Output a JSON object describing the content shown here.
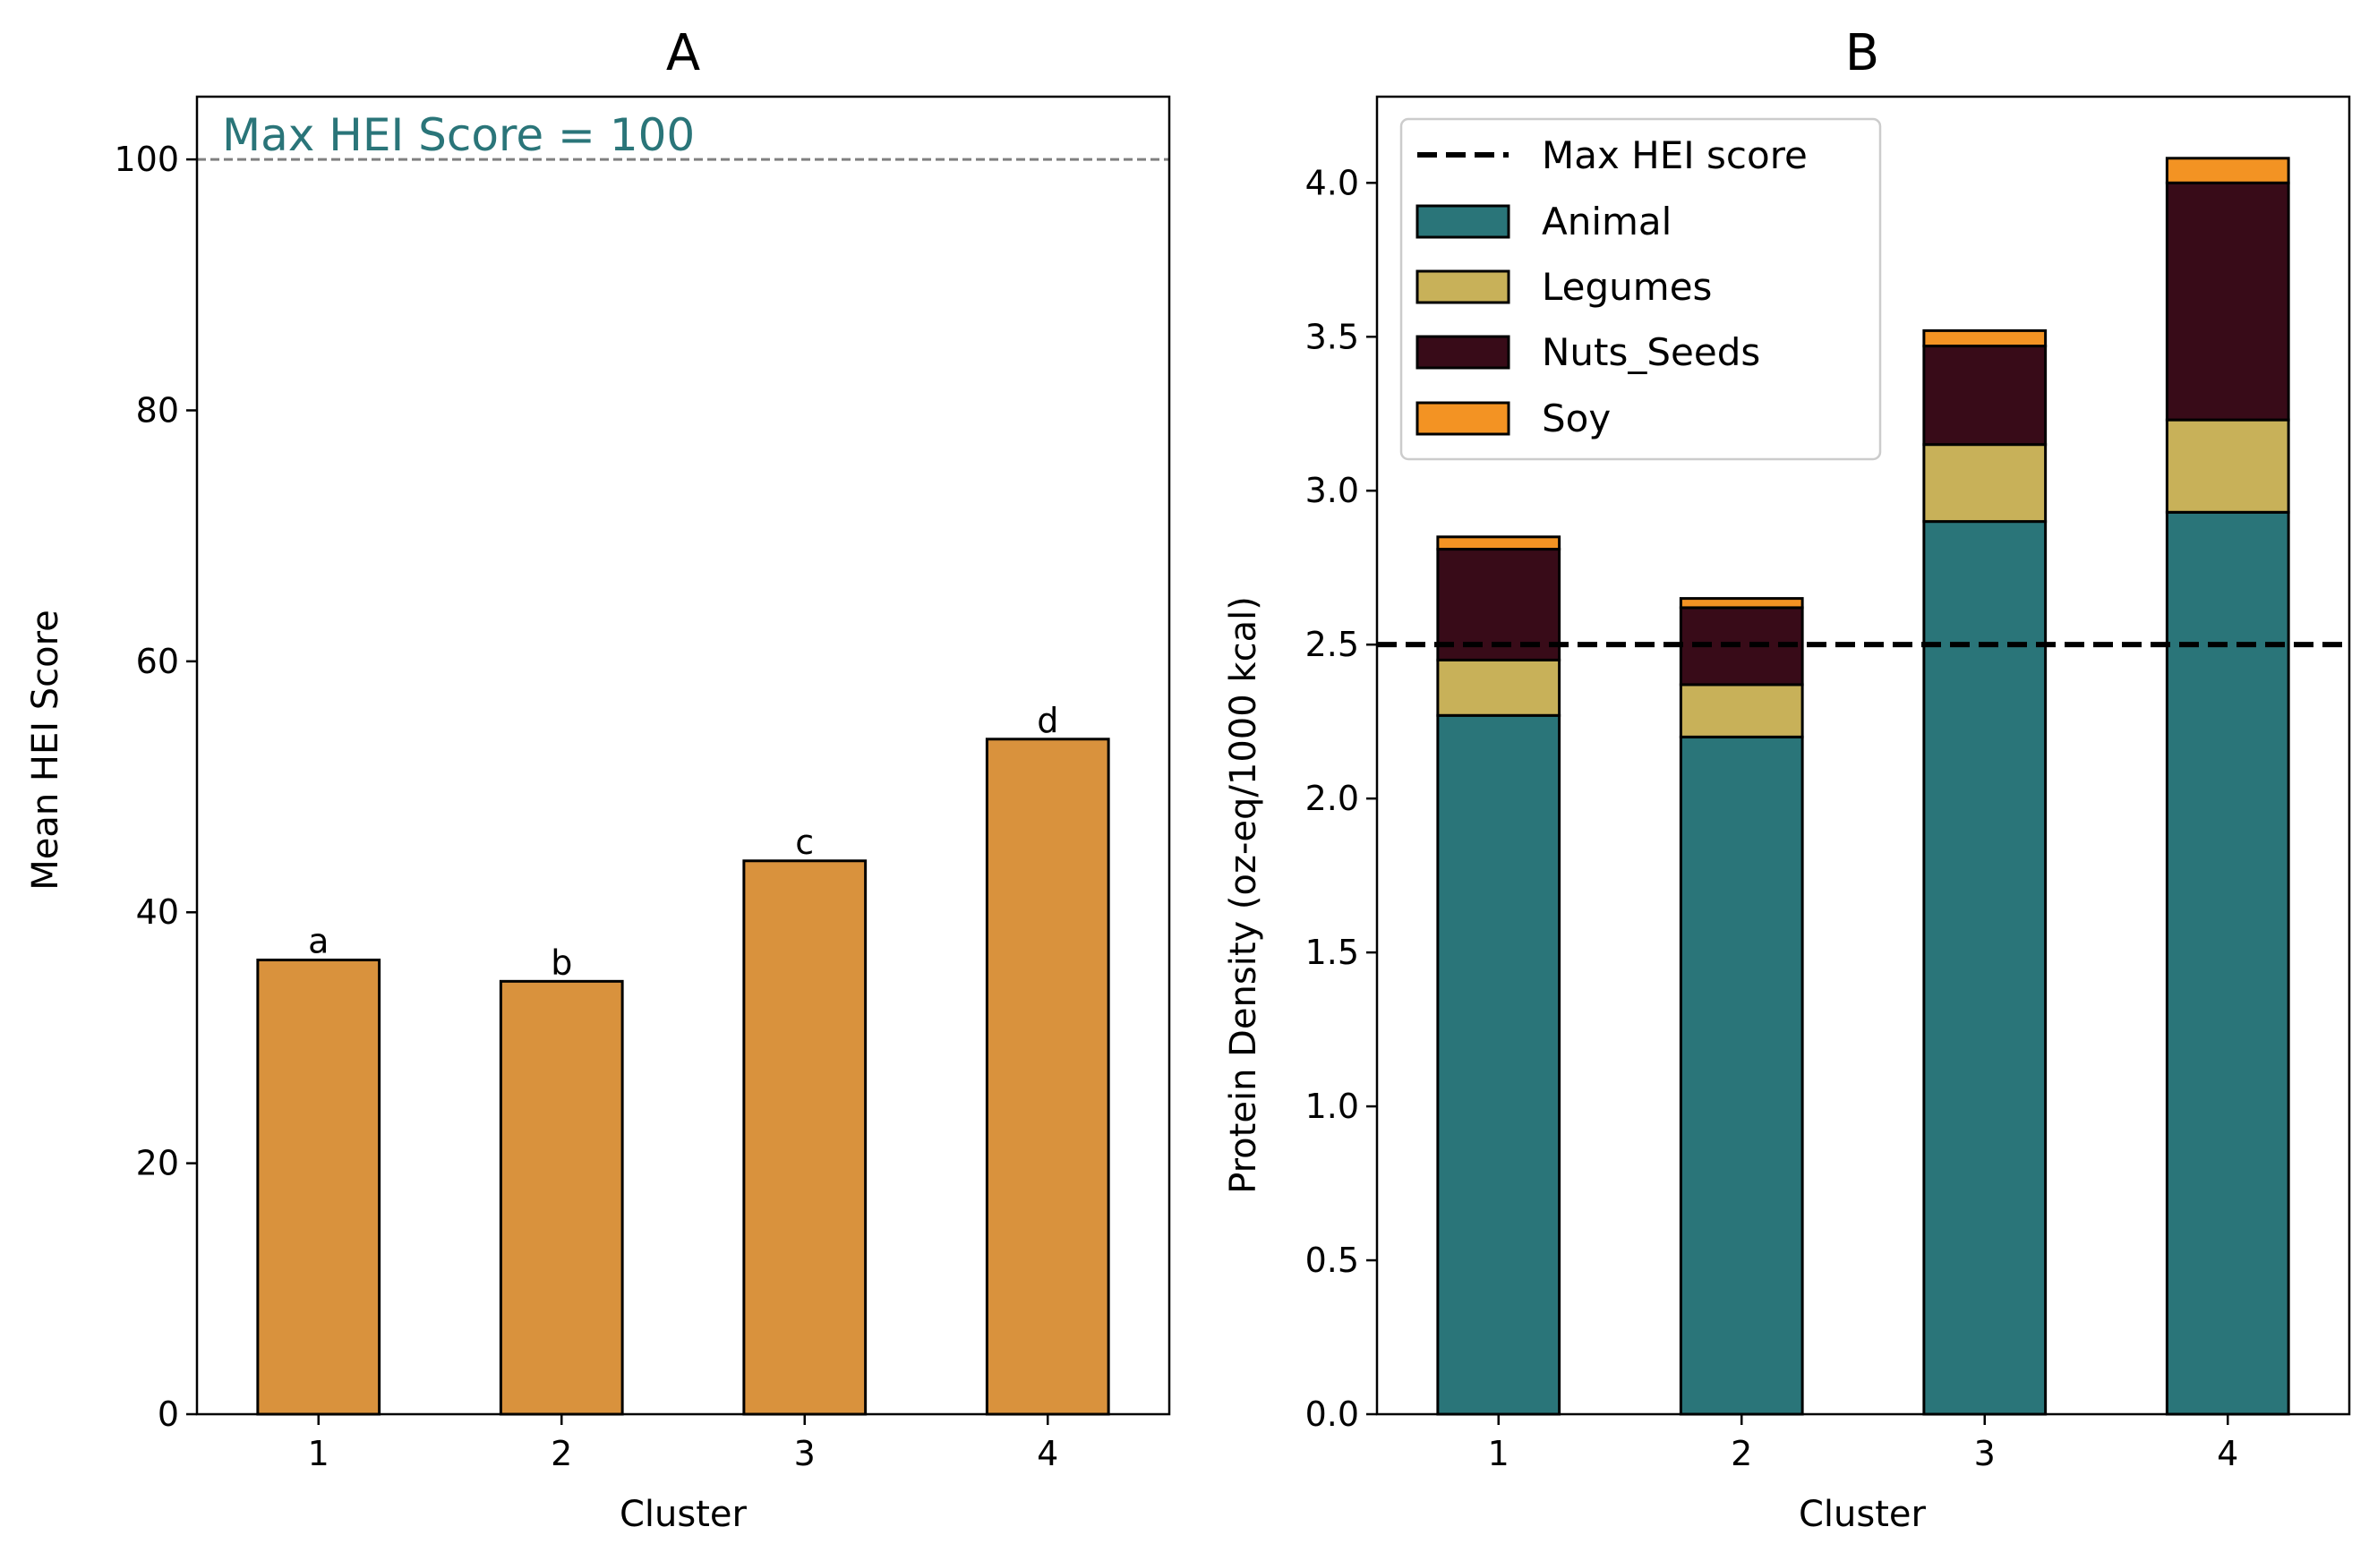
{
  "colors": {
    "bar_a": "#d9923d",
    "animal": "#2a7579",
    "legumes": "#c8b159",
    "nuts_seeds": "#380b18",
    "soy": "#f39323",
    "annotation": "#2a7579",
    "ref_line_a": "#808080",
    "ref_line_b": "#000000"
  },
  "chart_data": [
    {
      "type": "bar",
      "title": "A",
      "xlabel": "Cluster",
      "ylabel": "Mean HEI Score",
      "categories": [
        "1",
        "2",
        "3",
        "4"
      ],
      "values": [
        36.2,
        34.5,
        44.1,
        53.8
      ],
      "bar_labels": [
        "a",
        "b",
        "c",
        "d"
      ],
      "ylim": [
        0,
        105
      ],
      "yticks": [
        0,
        20,
        40,
        60,
        80,
        100
      ],
      "yticks_text": [
        "0",
        "20",
        "40",
        "60",
        "80",
        "100"
      ],
      "reference_line": {
        "y": 100,
        "style": "dashed"
      },
      "annotation": "Max HEI Score = 100",
      "grid": false
    },
    {
      "type": "bar",
      "stacked": true,
      "title": "B",
      "xlabel": "Cluster",
      "ylabel": "Protein Density (oz-eq/1000 kcal)",
      "categories": [
        "1",
        "2",
        "3",
        "4"
      ],
      "series": [
        {
          "name": "Animal",
          "values": [
            2.27,
            2.2,
            2.9,
            2.93
          ]
        },
        {
          "name": "Legumes",
          "values": [
            0.18,
            0.17,
            0.25,
            0.3
          ]
        },
        {
          "name": "Nuts_Seeds",
          "values": [
            0.36,
            0.25,
            0.32,
            0.77
          ]
        },
        {
          "name": "Soy",
          "values": [
            0.04,
            0.03,
            0.05,
            0.08
          ]
        }
      ],
      "ylim": [
        0,
        4.28
      ],
      "yticks": [
        0.0,
        0.5,
        1.0,
        1.5,
        2.0,
        2.5,
        3.0,
        3.5,
        4.0
      ],
      "yticks_text": [
        "0.0",
        "0.5",
        "1.0",
        "1.5",
        "2.0",
        "2.5",
        "3.0",
        "3.5",
        "4.0"
      ],
      "reference_line": {
        "y": 2.5,
        "style": "dashed",
        "name": "Max HEI score"
      },
      "legend": {
        "placement": "top-left",
        "entries": [
          "Max HEI score",
          "Animal",
          "Legumes",
          "Nuts_Seeds",
          "Soy"
        ]
      },
      "grid": false
    }
  ]
}
